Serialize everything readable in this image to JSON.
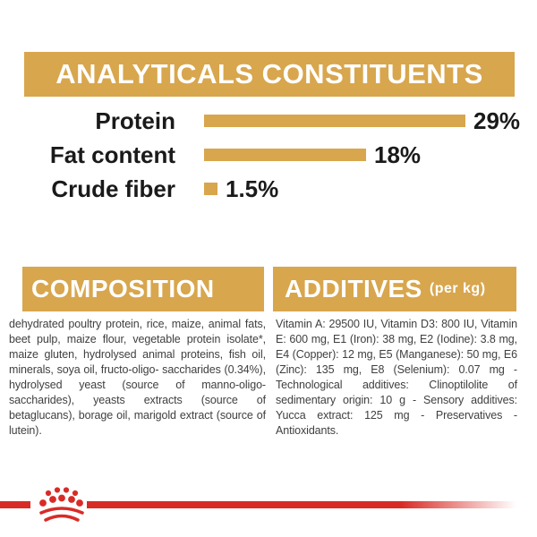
{
  "header": {
    "title": "ANALYTICALS CONSTITUENTS"
  },
  "chart_data": {
    "type": "bar",
    "orientation": "horizontal",
    "title": "ANALYTICALS CONSTITUENTS",
    "categories": [
      "Protein",
      "Fat content",
      "Crude fiber"
    ],
    "values": [
      29,
      18,
      1.5
    ],
    "value_labels": [
      "29%",
      "18%",
      "1.5%"
    ],
    "xlim": [
      0,
      34
    ],
    "bar_color": "#D8A64D",
    "legend": "none",
    "grid": false
  },
  "sections": {
    "composition": {
      "title": "COMPOSITION",
      "body": "dehydrated poultry protein, rice, maize, animal fats, beet pulp, maize flour, vegetable protein isolate*, maize gluten, hydrolysed animal proteins, fish oil, minerals, soya oil, fructo-oligo- saccharides (0.34%), hydrolysed yeast (source of manno-oligo-saccharides), yeasts extracts (source of betaglucans), borage oil, marigold extract (source of lutein)."
    },
    "additives": {
      "title": "ADDITIVES",
      "subtitle": "(per kg)",
      "body": "Vitamin A: 29500 IU, Vitamin D3: 800 IU, Vitamin E: 600 mg, E1 (Iron): 38 mg, E2 (Iodine): 3.8 mg, E4 (Copper): 12 mg, E5 (Manganese): 50 mg, E6 (Zinc): 135 mg, E8 (Selenium): 0.07 mg - Technological additives: Clinoptilolite of sedimentary origin: 10 g - Sensory additives: Yucca extract: 125 mg - Preservatives - Antioxidants."
    }
  },
  "branding": {
    "logo": "royal-canin-crown",
    "red": "#D92B26"
  },
  "colors": {
    "gold": "#D8A64D",
    "label_text": "#1a1a1a",
    "body_text": "#3f3f3f",
    "background": "#ffffff"
  }
}
